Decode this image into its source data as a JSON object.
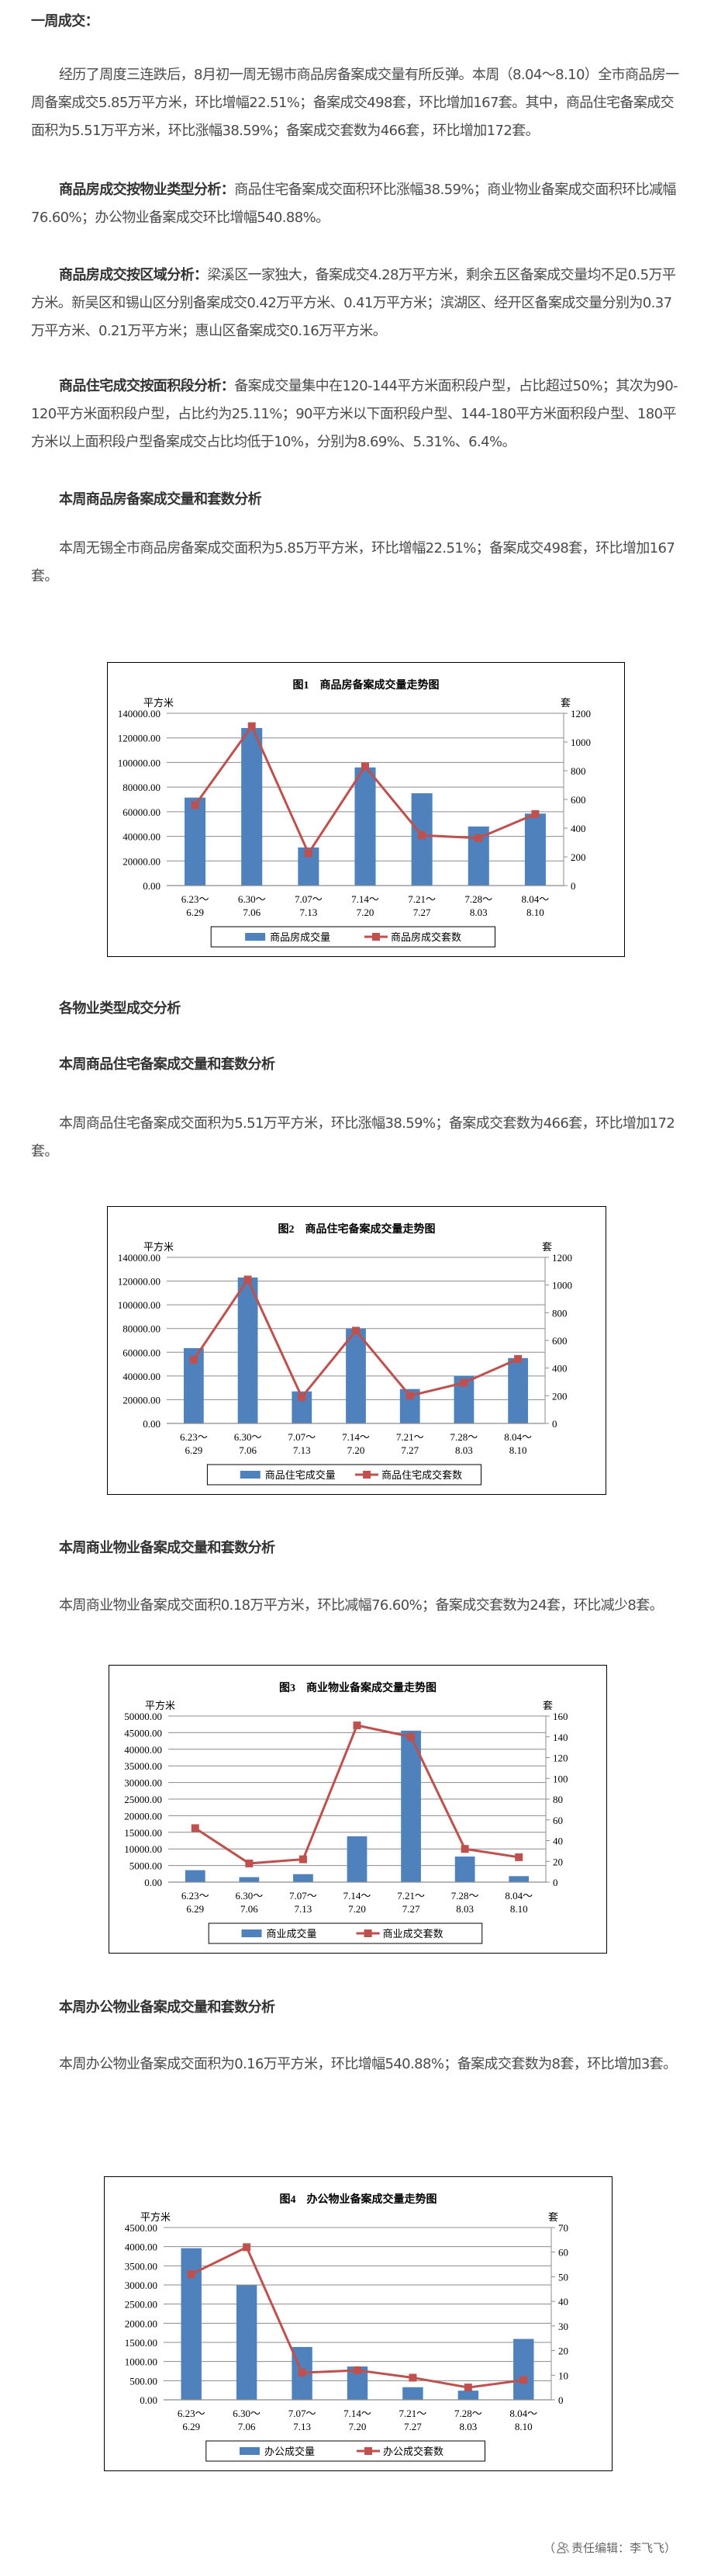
{
  "article": {
    "section_title": "一周成交：",
    "p1": "经历了周度三连跌后，8月初一周无锡市商品房备案成交量有所反弹。本周（8.04～8.10）全市商品房一周备案成交5.85万平方米，环比增幅22.51%；备案成交498套，环比增加167套。其中，商品住宅备案成交面积为5.51万平方米，环比涨幅38.59%；备案成交套数为466套，环比增加172套。",
    "p2_label": "商品房成交按物业类型分析：",
    "p2": "商品住宅备案成交面积环比涨幅38.59%；商业物业备案成交面积环比减幅76.60%；办公物业备案成交环比增幅540.88%。",
    "p3_label": "商品房成交按区域分析：",
    "p3": "梁溪区一家独大，备案成交4.28万平方米，剩余五区备案成交量均不足0.5万平方米。新吴区和锡山区分别备案成交0.42万平方米、0.41万平方米；滨湖区、经开区备案成交量分别为0.37万平方米、0.21万平方米；惠山区备案成交0.16万平方米。",
    "p4_label": "商品住宅成交按面积段分析：",
    "p4": "备案成交量集中在120-144平方米面积段户型，占比超过50%；其次为90-120平方米面积段户型，占比约为25.11%；90平方米以下面积段户型、144-180平方米面积段户型、180平方米以上面积段户型备案成交占比均低于10%，分别为8.69%、5.31%、6.4%。",
    "h_total": "本周商品房备案成交量和套数分析",
    "p_total": "本周无锡全市商品房备案成交面积为5.85万平方米，环比增幅22.51%；备案成交498套，环比增加167套。",
    "h_types": "各物业类型成交分析",
    "h_res": "本周商品住宅备案成交量和套数分析",
    "p_res": "本周商品住宅备案成交面积为5.51万平方米，环比涨幅38.59%；备案成交套数为466套，环比增加172套。",
    "h_com": "本周商业物业备案成交量和套数分析",
    "p_com": "本周商业物业备案成交面积0.18万平方米，环比减幅76.60%；备案成交套数为24套，环比减少8套。",
    "h_off": "本周办公物业备案成交量和套数分析",
    "p_off": "本周办公物业备案成交面积为0.16万平方米，环比增幅540.88%；备案成交套数为8套，环比增加3套。",
    "editor": "责任编辑：李飞飞",
    "editor_open": "（",
    "editor_close": "）",
    "editor_icon": "user-icon"
  },
  "colors": {
    "bar": "#4F81BD",
    "line": "#C0504D",
    "grid": "#8C8C8C"
  },
  "chart_data": [
    {
      "type": "bar+line",
      "title": "图1　商品房备案成交量走势图",
      "ylabel": "平方米",
      "y2label": "套",
      "categories": [
        [
          "6.23～",
          "6.29"
        ],
        [
          "6.30～",
          "7.06"
        ],
        [
          "7.07～",
          "7.13"
        ],
        [
          "7.14～",
          "7.20"
        ],
        [
          "7.21～",
          "7.27"
        ],
        [
          "7.28～",
          "8.03"
        ],
        [
          "8.04～",
          "8.10"
        ]
      ],
      "ylim": [
        0,
        140000
      ],
      "y2lim": [
        0,
        1200
      ],
      "y_ticks": [
        "0.00",
        "20000.00",
        "40000.00",
        "60000.00",
        "80000.00",
        "100000.00",
        "120000.00",
        "140000.00"
      ],
      "y2_ticks": [
        "0",
        "200",
        "400",
        "600",
        "800",
        "1000",
        "1200"
      ],
      "grid": true,
      "legend": "bottom",
      "series": [
        {
          "name": "商品房成交量",
          "type": "bar",
          "axis": "left",
          "values": [
            71500,
            128000,
            31000,
            96000,
            75000,
            48000,
            58500
          ]
        },
        {
          "name": "商品房成交套数",
          "type": "line",
          "axis": "right",
          "values": [
            560,
            1110,
            225,
            830,
            350,
            331,
            498
          ]
        }
      ]
    },
    {
      "type": "bar+line",
      "title": "图2　商品住宅备案成交量走势图",
      "ylabel": "平方米",
      "y2label": "套",
      "categories": [
        [
          "6.23～",
          "6.29"
        ],
        [
          "6.30～",
          "7.06"
        ],
        [
          "7.07～",
          "7.13"
        ],
        [
          "7.14～",
          "7.20"
        ],
        [
          "7.21～",
          "7.27"
        ],
        [
          "7.28～",
          "8.03"
        ],
        [
          "8.04～",
          "8.10"
        ]
      ],
      "ylim": [
        0,
        140000
      ],
      "y2lim": [
        0,
        1200
      ],
      "y_ticks": [
        "0.00",
        "20000.00",
        "40000.00",
        "60000.00",
        "80000.00",
        "100000.00",
        "120000.00",
        "140000.00"
      ],
      "y2_ticks": [
        "0",
        "200",
        "400",
        "600",
        "800",
        "1000",
        "1200"
      ],
      "grid": true,
      "legend": "bottom",
      "series": [
        {
          "name": "商品住宅成交量",
          "type": "bar",
          "axis": "left",
          "values": [
            63500,
            123000,
            27000,
            80000,
            29000,
            40000,
            55100
          ]
        },
        {
          "name": "商品住宅成交套数",
          "type": "line",
          "axis": "right",
          "values": [
            460,
            1040,
            190,
            670,
            200,
            294,
            466
          ]
        }
      ]
    },
    {
      "type": "bar+line",
      "title": "图3　商业物业备案成交量走势图",
      "ylabel": "平方米",
      "y2label": "套",
      "categories": [
        [
          "6.23～",
          "6.29"
        ],
        [
          "6.30～",
          "7.06"
        ],
        [
          "7.07～",
          "7.13"
        ],
        [
          "7.14～",
          "7.20"
        ],
        [
          "7.21～",
          "7.27"
        ],
        [
          "7.28～",
          "8.03"
        ],
        [
          "8.04～",
          "8.10"
        ]
      ],
      "ylim": [
        0,
        50000
      ],
      "y2lim": [
        0,
        160
      ],
      "y_ticks": [
        "0.00",
        "5000.00",
        "10000.00",
        "15000.00",
        "20000.00",
        "25000.00",
        "30000.00",
        "35000.00",
        "40000.00",
        "45000.00",
        "50000.00"
      ],
      "y2_ticks": [
        "0",
        "20",
        "40",
        "60",
        "80",
        "100",
        "120",
        "140",
        "160"
      ],
      "grid": true,
      "legend": "bottom",
      "series": [
        {
          "name": "商业成交量",
          "type": "bar",
          "axis": "left",
          "values": [
            3600,
            1500,
            2400,
            13800,
            45600,
            7700,
            1800
          ]
        },
        {
          "name": "商业成交套数",
          "type": "line",
          "axis": "right",
          "values": [
            52,
            18,
            22,
            151,
            140,
            32,
            24
          ]
        }
      ]
    },
    {
      "type": "bar+line",
      "title": "图4　办公物业备案成交量走势图",
      "ylabel": "平方米",
      "y2label": "套",
      "categories": [
        [
          "6.23～",
          "6.29"
        ],
        [
          "6.30～",
          "7.06"
        ],
        [
          "7.07～",
          "7.13"
        ],
        [
          "7.14～",
          "7.20"
        ],
        [
          "7.21～",
          "7.27"
        ],
        [
          "7.28～",
          "8.03"
        ],
        [
          "8.04～",
          "8.10"
        ]
      ],
      "ylim": [
        0,
        4500
      ],
      "y2lim": [
        0,
        70
      ],
      "y_ticks": [
        "0.00",
        "500.00",
        "1000.00",
        "1500.00",
        "2000.00",
        "2500.00",
        "3000.00",
        "3500.00",
        "4000.00",
        "4500.00"
      ],
      "y2_ticks": [
        "0",
        "10",
        "20",
        "30",
        "40",
        "50",
        "60",
        "70"
      ],
      "grid": true,
      "legend": "bottom",
      "series": [
        {
          "name": "办公成交量",
          "type": "bar",
          "axis": "left",
          "values": [
            3960,
            2990,
            1380,
            870,
            330,
            240,
            1590
          ]
        },
        {
          "name": "办公成交套数",
          "type": "line",
          "axis": "right",
          "values": [
            51,
            62,
            11,
            12,
            9,
            5,
            8
          ]
        }
      ]
    }
  ]
}
